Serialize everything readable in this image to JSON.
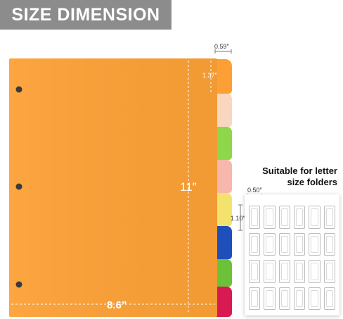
{
  "banner": {
    "title": "SIZE DIMENSION"
  },
  "divider": {
    "height_label": "11″",
    "width_label": "8.6”",
    "tab_width_label": "0.59″",
    "tab_height_label": "1.37″",
    "body_color": "#fca035",
    "tab_colors": [
      "#fca035",
      "#f9d6bf",
      "#8ed64a",
      "#f7b7ad",
      "#f3e36c",
      "#1f4fbb",
      "#6cc139",
      "#d91a52"
    ]
  },
  "labels": {
    "info_line1": "Suitable for letter",
    "info_line2": "size folders",
    "label_width": "0.50″",
    "label_height": "1.10″"
  }
}
